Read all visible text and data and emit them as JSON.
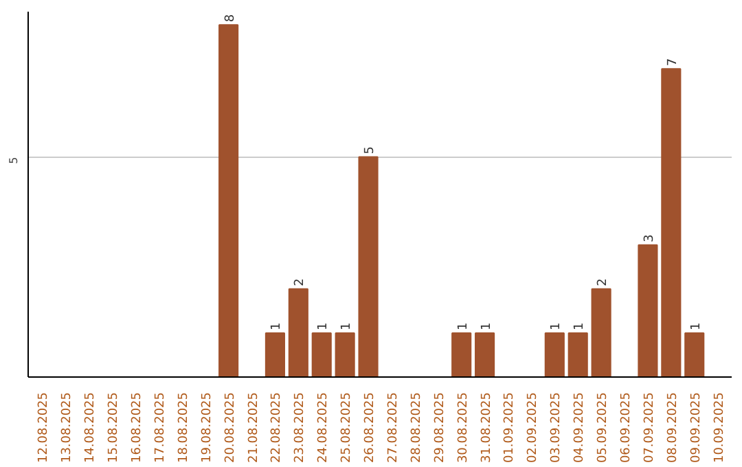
{
  "chart_data": {
    "type": "bar",
    "categories": [
      "12.08.2025",
      "13.08.2025",
      "14.08.2025",
      "15.08.2025",
      "16.08.2025",
      "17.08.2025",
      "18.08.2025",
      "19.08.2025",
      "20.08.2025",
      "21.08.2025",
      "22.08.2025",
      "23.08.2025",
      "24.08.2025",
      "25.08.2025",
      "26.08.2025",
      "27.08.2025",
      "28.08.2025",
      "29.08.2025",
      "30.08.2025",
      "31.08.2025",
      "01.09.2025",
      "02.09.2025",
      "03.09.2025",
      "04.09.2025",
      "05.09.2025",
      "06.09.2025",
      "07.09.2025",
      "08.09.2025",
      "09.09.2025",
      "10.09.2025"
    ],
    "values": [
      0,
      0,
      0,
      0,
      0,
      0,
      0,
      0,
      8,
      0,
      1,
      2,
      1,
      1,
      5,
      0,
      0,
      0,
      1,
      1,
      0,
      0,
      1,
      1,
      2,
      0,
      3,
      7,
      1,
      0
    ],
    "value_labels": [
      null,
      null,
      null,
      null,
      null,
      null,
      null,
      null,
      "8",
      null,
      "1",
      "2",
      "1",
      "1",
      "5",
      null,
      null,
      null,
      "1",
      "1",
      null,
      null,
      "1",
      "1",
      "2",
      null,
      "3",
      "7",
      "1",
      null
    ],
    "color": "#a0522d",
    "ylim": [
      0,
      8.3
    ],
    "yticks": [
      5
    ],
    "grid": "y"
  }
}
